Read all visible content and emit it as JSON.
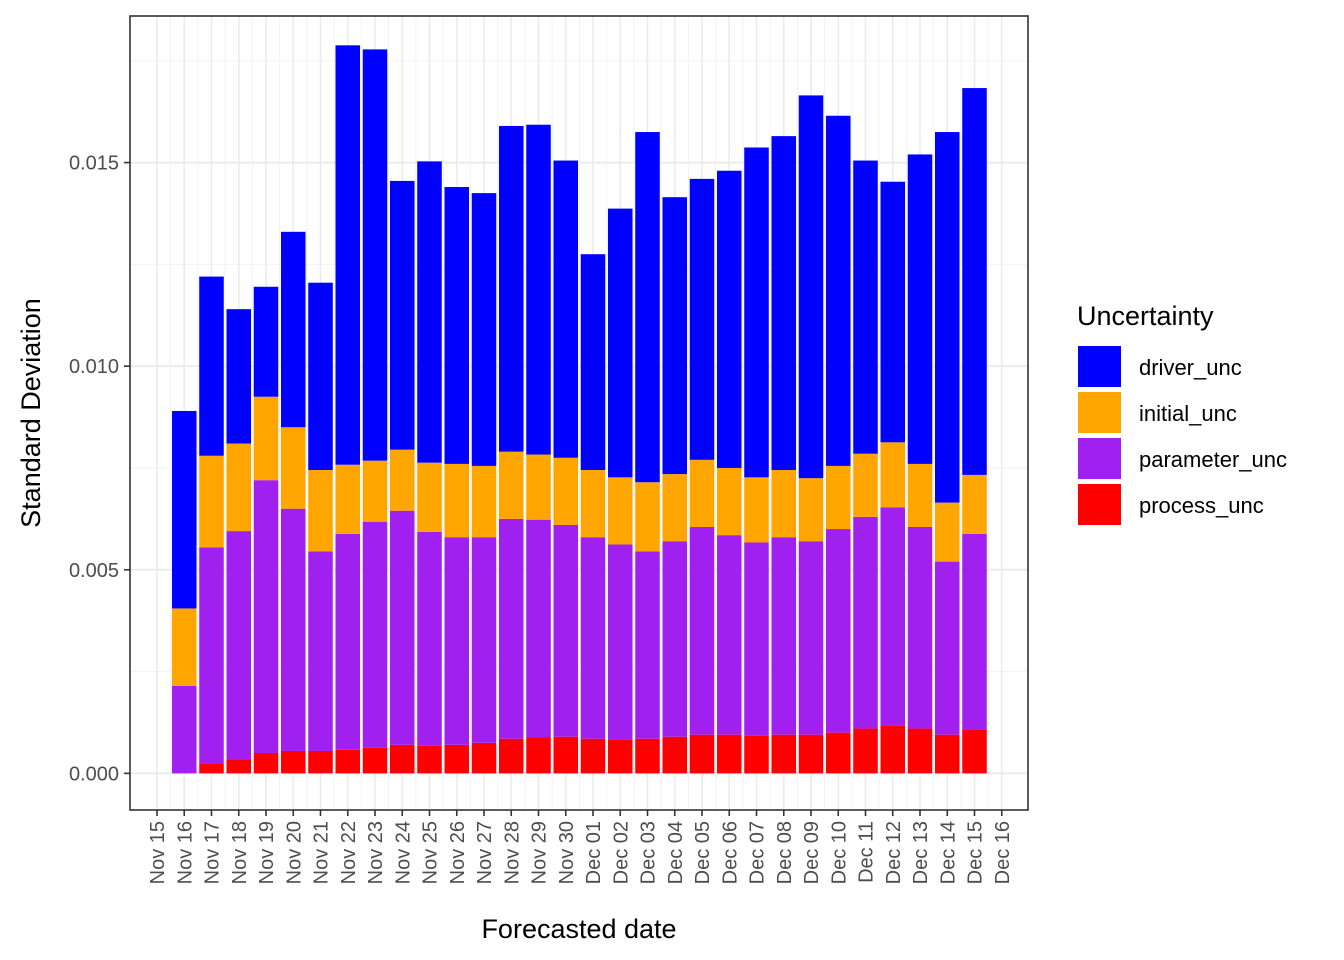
{
  "chart_data": {
    "type": "bar",
    "stacked": true,
    "xlabel": "Forecasted date",
    "ylabel": "Standard Deviation",
    "ylim": [
      -0.0009,
      0.0186
    ],
    "yticks": [
      0.0,
      0.005,
      0.01,
      0.015
    ],
    "ytick_labels": [
      "0.000",
      "0.005",
      "0.010",
      "0.015"
    ],
    "xtick_labels": [
      "Nov 15",
      "Nov 16",
      "Nov 17",
      "Nov 18",
      "Nov 19",
      "Nov 20",
      "Nov 21",
      "Nov 22",
      "Nov 23",
      "Nov 24",
      "Nov 25",
      "Nov 26",
      "Nov 27",
      "Nov 28",
      "Nov 29",
      "Nov 30",
      "Dec 01",
      "Dec 02",
      "Dec 03",
      "Dec 04",
      "Dec 05",
      "Dec 06",
      "Dec 07",
      "Dec 08",
      "Dec 09",
      "Dec 10",
      "Dec 11",
      "Dec 12",
      "Dec 13",
      "Dec 14",
      "Dec 15",
      "Dec 16"
    ],
    "categories": [
      "Nov 16",
      "Nov 17",
      "Nov 18",
      "Nov 19",
      "Nov 20",
      "Nov 21",
      "Nov 22",
      "Nov 23",
      "Nov 24",
      "Nov 25",
      "Nov 26",
      "Nov 27",
      "Nov 28",
      "Nov 29",
      "Nov 30",
      "Dec 01",
      "Dec 02",
      "Dec 03",
      "Dec 04",
      "Dec 05",
      "Dec 06",
      "Dec 07",
      "Dec 08",
      "Dec 09",
      "Dec 10",
      "Dec 11",
      "Dec 12",
      "Dec 13",
      "Dec 14",
      "Dec 15"
    ],
    "grid": true,
    "legend": {
      "title": "Uncertainty",
      "placement": "right",
      "entries": [
        "driver_unc",
        "initial_unc",
        "parameter_unc",
        "process_unc"
      ]
    },
    "series": [
      {
        "name": "process_unc",
        "color": "#ff0000",
        "values": [
          0.0,
          0.00025,
          0.00035,
          0.0005,
          0.00055,
          0.00055,
          0.00058,
          0.00063,
          0.0007,
          0.00068,
          0.0007,
          0.00075,
          0.00085,
          0.00088,
          0.0009,
          0.00085,
          0.00082,
          0.00085,
          0.0009,
          0.00095,
          0.00095,
          0.00092,
          0.00095,
          0.00095,
          0.001,
          0.0011,
          0.00118,
          0.0011,
          0.00095,
          0.00108
        ]
      },
      {
        "name": "parameter_unc",
        "color": "#a020f0",
        "values": [
          0.00215,
          0.0053,
          0.0056,
          0.0067,
          0.00595,
          0.0049,
          0.0053,
          0.00555,
          0.00575,
          0.00525,
          0.0051,
          0.00505,
          0.0054,
          0.00535,
          0.0052,
          0.00495,
          0.0048,
          0.0046,
          0.0048,
          0.0051,
          0.0049,
          0.00475,
          0.00485,
          0.00475,
          0.005,
          0.0052,
          0.00535,
          0.00495,
          0.00425,
          0.0048
        ]
      },
      {
        "name": "initial_unc",
        "color": "#ffa500",
        "values": [
          0.0019,
          0.00225,
          0.00215,
          0.00205,
          0.002,
          0.002,
          0.0017,
          0.0015,
          0.0015,
          0.0017,
          0.0018,
          0.00175,
          0.00165,
          0.0016,
          0.00165,
          0.00165,
          0.00165,
          0.0017,
          0.00165,
          0.00165,
          0.00165,
          0.0016,
          0.00165,
          0.00155,
          0.00155,
          0.00155,
          0.0016,
          0.00155,
          0.00145,
          0.00145
        ]
      },
      {
        "name": "driver_unc",
        "color": "#0000ff",
        "values": [
          0.00485,
          0.0044,
          0.0033,
          0.0027,
          0.0048,
          0.0046,
          0.0103,
          0.0101,
          0.0066,
          0.0074,
          0.0068,
          0.0067,
          0.008,
          0.0081,
          0.0073,
          0.0053,
          0.0066,
          0.0086,
          0.0068,
          0.0069,
          0.0073,
          0.0081,
          0.0082,
          0.0094,
          0.0086,
          0.0072,
          0.0064,
          0.0076,
          0.0091,
          0.0095
        ]
      }
    ]
  }
}
